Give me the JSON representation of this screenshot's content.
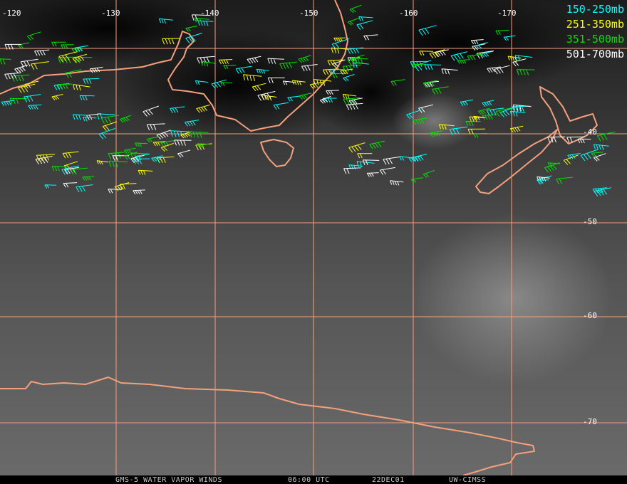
{
  "lon_labels": [
    "-120",
    "-130",
    "-140",
    "-150",
    "-160",
    "-170"
  ],
  "lat_labels": [
    "-40",
    "-50",
    "-60",
    "-70"
  ],
  "legend": [
    {
      "label": "150-250mb",
      "color": "#00ffff"
    },
    {
      "label": "251-350mb",
      "color": "#ffff00"
    },
    {
      "label": "351-500mb",
      "color": "#00e000"
    },
    {
      "label": "501-700mb",
      "color": "#ffffff"
    }
  ],
  "footer": {
    "product": "GMS-5 WATER VAPOR WINDS",
    "time": "06:00 UTC",
    "date": "22DEC01",
    "source": "UW-CIMSS"
  }
}
